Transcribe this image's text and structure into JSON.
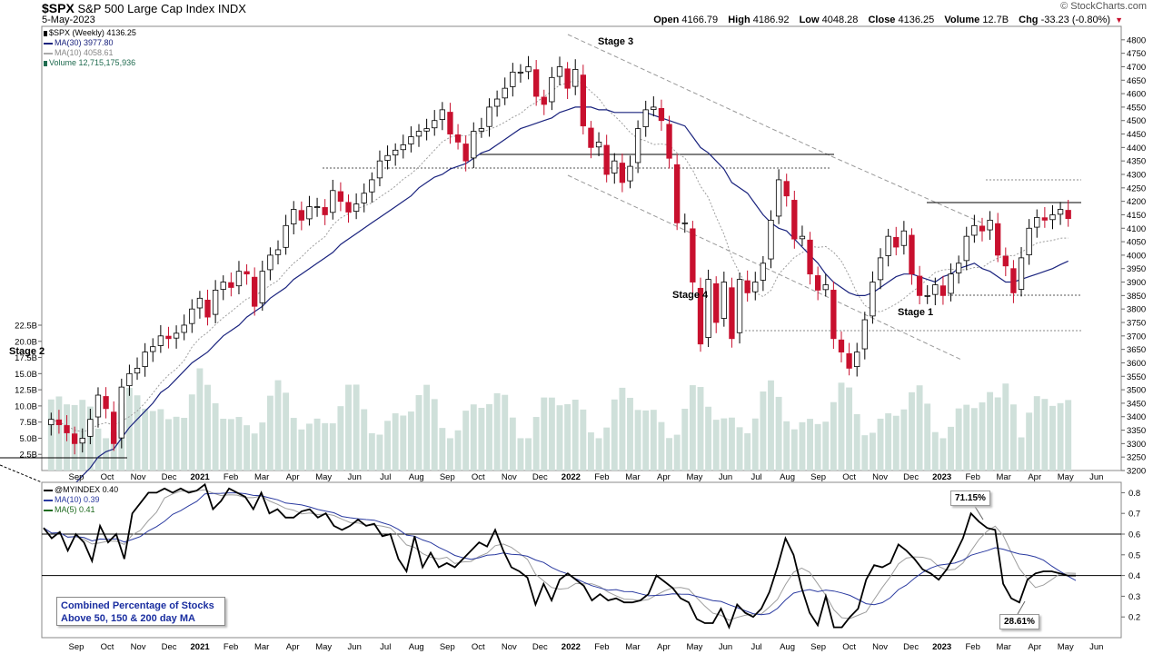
{
  "header": {
    "symbol": "$SPX",
    "name": "S&P 500 Large Cap Index",
    "exchange": "INDX",
    "date": "5-May-2023",
    "brand": "© StockCharts.com",
    "open_label": "Open",
    "open": "4166.79",
    "high_label": "High",
    "high": "4186.92",
    "low_label": "Low",
    "low": "4048.28",
    "close_label": "Close",
    "close": "4136.25",
    "volume_label": "Volume",
    "volume": "12.7B",
    "chg_label": "Chg",
    "chg": "-33.23 (-0.80%)"
  },
  "legend_top": {
    "price": "$SPX (Weekly) 4136.25",
    "ma30": "MA(30) 3977.80",
    "ma10": "MA(10) 4058.61",
    "volume": "Volume 12,715,175,936"
  },
  "legend_bottom": {
    "index": "@MYINDEX 0.40",
    "ma10": "MA(10) 0.39",
    "ma5": "MA(5) 0.41"
  },
  "annotations": {
    "stage2": "Stage 2",
    "stage3": "Stage 3",
    "stage4": "Stage 4",
    "stage1": "Stage 1",
    "callout_high": "71.15%",
    "callout_low": "28.61%",
    "note_line1": "Combined Percentage of Stocks",
    "note_line2": "Above 50, 150 & 200 day MA"
  },
  "colors": {
    "up_candle": "#000000",
    "down_candle": "#c8102e",
    "ma30": "#1a237e",
    "ma10": "#9e9e9e",
    "volume": "#cfe0da",
    "indicator": "#000000",
    "ind_ma10": "#2a3aa0",
    "ind_ma5": "#9e9e9e",
    "note_text": "#1a2ea0"
  },
  "chart_data": [
    {
      "type": "candlestick",
      "title": "$SPX S&P 500 Large Cap Index INDX",
      "ylim": [
        3200,
        4850
      ],
      "y_ticks": [
        3200,
        3250,
        3300,
        3350,
        3400,
        3450,
        3500,
        3550,
        3600,
        3650,
        3700,
        3750,
        3800,
        3850,
        3900,
        3950,
        4000,
        4050,
        4100,
        4150,
        4200,
        4250,
        4300,
        4350,
        4400,
        4450,
        4500,
        4550,
        4600,
        4650,
        4700,
        4750,
        4800
      ],
      "x_ticks": [
        "Sep",
        "Oct",
        "Nov",
        "Dec",
        "2021",
        "Feb",
        "Mar",
        "Apr",
        "May",
        "Jun",
        "Jul",
        "Aug",
        "Sep",
        "Oct",
        "Nov",
        "Dec",
        "2022",
        "Feb",
        "Mar",
        "Apr",
        "May",
        "Jun",
        "Jul",
        "Aug",
        "Sep",
        "Oct",
        "Nov",
        "Dec",
        "2023",
        "Feb",
        "Mar",
        "Apr",
        "May",
        "Jun"
      ],
      "volume_ticks": [
        "2.5B",
        "5.0B",
        "7.5B",
        "10.0B",
        "12.5B",
        "15.0B",
        "17.5B",
        "20.0B",
        "22.5B"
      ],
      "volume_ylim": [
        0,
        22.5
      ],
      "close_weekly": [
        3390,
        3370,
        3340,
        3300,
        3320,
        3390,
        3480,
        3430,
        3300,
        3510,
        3560,
        3580,
        3640,
        3660,
        3700,
        3690,
        3710,
        3740,
        3800,
        3840,
        3770,
        3870,
        3900,
        3880,
        3940,
        3930,
        3810,
        3940,
        4000,
        4020,
        4110,
        4170,
        4130,
        4180,
        4180,
        4150,
        4240,
        4200,
        4160,
        4190,
        4230,
        4280,
        4350,
        4370,
        4390,
        4410,
        4440,
        4460,
        4470,
        4500,
        4540,
        4450,
        4420,
        4350,
        4460,
        4470,
        4550,
        4580,
        4620,
        4680,
        4680,
        4700,
        4590,
        4560,
        4660,
        4700,
        4620,
        4690,
        4480,
        4400,
        4420,
        4300,
        4350,
        4270,
        4330,
        4470,
        4540,
        4550,
        4500,
        4360,
        4120,
        4120,
        3900,
        3670,
        3910,
        3750,
        3900,
        3690,
        3910,
        3860,
        3900,
        3970,
        4130,
        4280,
        4220,
        4060,
        4070,
        3930,
        3870,
        3890,
        3690,
        3640,
        3580,
        3640,
        3760,
        3900,
        3990,
        4070,
        4030,
        4090,
        3930,
        3850,
        3850,
        3890,
        3850,
        3930,
        3970,
        4070,
        4110,
        4090,
        4130,
        4000,
        3960,
        3860,
        3990,
        4100,
        4140,
        4130,
        4150,
        4170,
        4136
      ],
      "ma30_weekly": [
        3080,
        3100,
        3120,
        3150,
        3180,
        3210,
        3250,
        3270,
        3280,
        3320,
        3360,
        3390,
        3420,
        3450,
        3490,
        3510,
        3540,
        3570,
        3600,
        3620,
        3640,
        3670,
        3700,
        3720,
        3740,
        3770,
        3790,
        3810,
        3840,
        3860,
        3880,
        3910,
        3930,
        3950,
        3970,
        3990,
        4010,
        4040,
        4060,
        4080,
        4100,
        4120,
        4140,
        4160,
        4180,
        4200,
        4220,
        4250,
        4270,
        4290,
        4300,
        4320,
        4330,
        4340,
        4360,
        4380,
        4390,
        4410,
        4430,
        4450,
        4470,
        4480,
        4490,
        4500,
        4510,
        4530,
        4540,
        4550,
        4550,
        4550,
        4540,
        4540,
        4530,
        4530,
        4530,
        4530,
        4530,
        4520,
        4510,
        4500,
        4490,
        4480,
        4440,
        4400,
        4380,
        4350,
        4320,
        4270,
        4250,
        4230,
        4190,
        4150,
        4120,
        4100,
        4090,
        4060,
        4030,
        4000,
        3970,
        3930,
        3900,
        3880,
        3860,
        3850,
        3850,
        3860,
        3880,
        3900,
        3920,
        3930,
        3930,
        3920,
        3910,
        3900,
        3920,
        3930,
        3950,
        3960,
        3970,
        3950,
        3940,
        3920,
        3900,
        3900,
        3910,
        3920,
        3930,
        3940,
        3950,
        3965,
        3978
      ],
      "series": [
        {
          "name": "$SPX (Weekly)",
          "last": 4136.25
        },
        {
          "name": "MA(30)",
          "last": 3977.8
        },
        {
          "name": "MA(10)",
          "last": 4058.61
        },
        {
          "name": "Volume",
          "last": 12715175936
        }
      ]
    },
    {
      "type": "line",
      "title": "@MYINDEX",
      "ylim": [
        0.1,
        0.85
      ],
      "y_ticks": [
        0.2,
        0.3,
        0.4,
        0.5,
        0.6,
        0.7,
        0.8
      ],
      "reference_lines": [
        0.4,
        0.6
      ],
      "values": [
        0.63,
        0.58,
        0.61,
        0.52,
        0.6,
        0.56,
        0.47,
        0.64,
        0.56,
        0.6,
        0.48,
        0.7,
        0.75,
        0.8,
        0.8,
        0.82,
        0.8,
        0.82,
        0.8,
        0.81,
        0.84,
        0.72,
        0.76,
        0.82,
        0.8,
        0.78,
        0.72,
        0.8,
        0.7,
        0.72,
        0.68,
        0.68,
        0.71,
        0.72,
        0.68,
        0.7,
        0.64,
        0.62,
        0.64,
        0.67,
        0.64,
        0.65,
        0.59,
        0.6,
        0.48,
        0.42,
        0.59,
        0.44,
        0.51,
        0.44,
        0.46,
        0.44,
        0.48,
        0.52,
        0.56,
        0.54,
        0.62,
        0.52,
        0.44,
        0.42,
        0.39,
        0.26,
        0.36,
        0.28,
        0.38,
        0.41,
        0.38,
        0.35,
        0.28,
        0.31,
        0.28,
        0.29,
        0.27,
        0.27,
        0.28,
        0.31,
        0.4,
        0.37,
        0.34,
        0.29,
        0.27,
        0.19,
        0.17,
        0.17,
        0.24,
        0.15,
        0.26,
        0.22,
        0.2,
        0.24,
        0.32,
        0.44,
        0.58,
        0.5,
        0.34,
        0.22,
        0.16,
        0.3,
        0.15,
        0.15,
        0.2,
        0.24,
        0.38,
        0.45,
        0.44,
        0.46,
        0.55,
        0.52,
        0.48,
        0.43,
        0.41,
        0.38,
        0.43,
        0.5,
        0.58,
        0.7,
        0.66,
        0.63,
        0.62,
        0.36,
        0.29,
        0.27,
        0.38,
        0.41,
        0.42,
        0.42,
        0.41,
        0.4,
        0.4
      ],
      "series": [
        {
          "name": "@MYINDEX",
          "last": 0.4
        },
        {
          "name": "MA(10)",
          "last": 0.39
        },
        {
          "name": "MA(5)",
          "last": 0.41
        }
      ],
      "labels": {
        "high": 0.7115,
        "low": 0.2861
      }
    }
  ]
}
